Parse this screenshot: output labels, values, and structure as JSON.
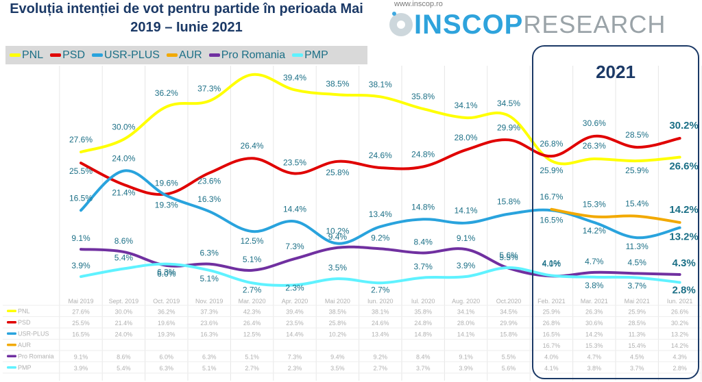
{
  "title": "Evoluția intenției de vot pentru partide în perioada Mai 2019 – Iunie 2021",
  "brand": {
    "url": "www.inscop.ro",
    "name_a": "INSCOP",
    "name_b": "RESEARCH"
  },
  "highlight_label": "2021",
  "colors": {
    "PNL": "#ffff00",
    "PSD": "#e00000",
    "USR-PLUS": "#29a3dd",
    "AUR": "#f2a900",
    "Pro Romania": "#7030a0",
    "PMP": "#5ff2ff",
    "label": "#1b6f86",
    "title": "#1b3966"
  },
  "chart_data": {
    "type": "line",
    "title": "Evoluția intenției de vot pentru partide în perioada Mai 2019 – Iunie 2021",
    "categories": [
      "Mai 2019",
      "Sept. 2019",
      "Oct. 2019",
      "Nov. 2019",
      "Mar. 2020",
      "Apr. 2020",
      "Mai 2020",
      "Iun. 2020",
      "Iul. 2020",
      "Aug. 2020",
      "Oct.2020",
      "Feb. 2021",
      "Mar. 2021",
      "Mai 2021",
      "Iun. 2021"
    ],
    "ylim": [
      0,
      45
    ],
    "legend": "top-left",
    "series": [
      {
        "name": "PNL",
        "color": "#ffff00",
        "values": [
          27.6,
          30.0,
          36.2,
          37.3,
          42.3,
          39.4,
          38.5,
          38.1,
          35.8,
          34.1,
          34.5,
          25.9,
          26.3,
          25.9,
          26.6
        ],
        "labels": [
          "27.6%",
          "30.0%",
          "36.2%",
          "37.3%",
          "",
          "39.4%",
          "38.5%",
          "38.1%",
          "35.8%",
          "34.1%",
          "34.5%",
          "25.9%",
          "26.3%",
          "25.9%",
          "26.6%"
        ]
      },
      {
        "name": "PSD",
        "color": "#e00000",
        "values": [
          25.5,
          21.4,
          19.6,
          23.6,
          26.4,
          23.5,
          25.8,
          24.6,
          24.8,
          28.0,
          29.9,
          26.8,
          30.6,
          28.5,
          30.2
        ],
        "labels": [
          "25.5%",
          "21.4%",
          "19.6%",
          "23.6%",
          "26.4%",
          "23.5%",
          "25.8%",
          "24.6%",
          "24.8%",
          "28.0%",
          "29.9%",
          "26.8%",
          "30.6%",
          "28.5%",
          "30.2%"
        ]
      },
      {
        "name": "USR-PLUS",
        "color": "#29a3dd",
        "values": [
          16.5,
          24.0,
          19.3,
          16.3,
          12.5,
          14.4,
          10.2,
          13.4,
          14.8,
          14.1,
          15.8,
          16.5,
          14.2,
          11.3,
          13.2
        ],
        "labels": [
          "16.5%",
          "24.0%",
          "19.3%",
          "16.3%",
          "12.5%",
          "14.4%",
          "10.2%",
          "13.4%",
          "14.8%",
          "14.1%",
          "15.8%",
          "16.5%",
          "14.2%",
          "11.3%",
          "13.2%"
        ]
      },
      {
        "name": "AUR",
        "color": "#f2a900",
        "values": [
          null,
          null,
          null,
          null,
          null,
          null,
          null,
          null,
          null,
          null,
          null,
          16.7,
          15.3,
          15.4,
          14.2
        ],
        "labels": [
          "",
          "",
          "",
          "",
          "",
          "",
          "",
          "",
          "",
          "",
          "",
          "16.7%",
          "15.3%",
          "15.4%",
          "14.2%"
        ]
      },
      {
        "name": "Pro Romania",
        "color": "#7030a0",
        "values": [
          9.1,
          8.6,
          6.0,
          6.3,
          5.1,
          7.3,
          9.4,
          9.2,
          8.4,
          9.1,
          5.5,
          4.0,
          4.7,
          4.5,
          4.3
        ],
        "labels": [
          "9.1%",
          "8.6%",
          "6.0%",
          "6.3%",
          "5.1%",
          "7.3%",
          "9.4%",
          "9.2%",
          "8.4%",
          "9.1%",
          "5.5%",
          "4.0%",
          "4.7%",
          "4.5%",
          "4.3%"
        ]
      },
      {
        "name": "PMP",
        "color": "#5ff2ff",
        "values": [
          3.9,
          5.4,
          6.3,
          5.1,
          2.7,
          2.3,
          3.5,
          2.7,
          3.7,
          3.9,
          5.6,
          4.1,
          3.8,
          3.7,
          2.8
        ],
        "labels": [
          "3.9%",
          "5.4%",
          "6.3%",
          "5.1%",
          "2.7%",
          "2.3%",
          "3.5%",
          "2.7%",
          "3.7%",
          "3.9%",
          "5.6%",
          "4.1%",
          "3.8%",
          "3.7%",
          "2.8%"
        ]
      }
    ],
    "table": {
      "PNL": [
        "27.6%",
        "30.0%",
        "36.2%",
        "37.3%",
        "42.3%",
        "39.4%",
        "38.5%",
        "38.1%",
        "35.8%",
        "34.1%",
        "34.5%",
        "25.9%",
        "26.3%",
        "25.9%",
        "26.6%"
      ],
      "PSD": [
        "25.5%",
        "21.4%",
        "19.6%",
        "23.6%",
        "26.4%",
        "23.5%",
        "25.8%",
        "24.6%",
        "24.8%",
        "28.0%",
        "29.9%",
        "26.8%",
        "30.6%",
        "28.5%",
        "30.2%"
      ],
      "USR-PLUS": [
        "16.5%",
        "24.0%",
        "19.3%",
        "16.3%",
        "12.5%",
        "14.4%",
        "10.2%",
        "13.4%",
        "14.8%",
        "14.1%",
        "15.8%",
        "16.5%",
        "14.2%",
        "11.3%",
        "13.2%"
      ],
      "AUR": [
        "",
        "",
        "",
        "",
        "",
        "",
        "",
        "",
        "",
        "",
        "",
        "16.7%",
        "15.3%",
        "15.4%",
        "14.2%"
      ],
      "Pro Romania": [
        "9.1%",
        "8.6%",
        "6.0%",
        "6.3%",
        "5.1%",
        "7.3%",
        "9.4%",
        "9.2%",
        "8.4%",
        "9.1%",
        "5.5%",
        "4.0%",
        "4.7%",
        "4.5%",
        "4.3%"
      ],
      "PMP": [
        "3.9%",
        "5.4%",
        "6.3%",
        "5.1%",
        "2.7%",
        "2.3%",
        "3.5%",
        "2.7%",
        "3.7%",
        "3.9%",
        "5.6%",
        "4.1%",
        "3.8%",
        "3.7%",
        "2.8%"
      ]
    }
  }
}
